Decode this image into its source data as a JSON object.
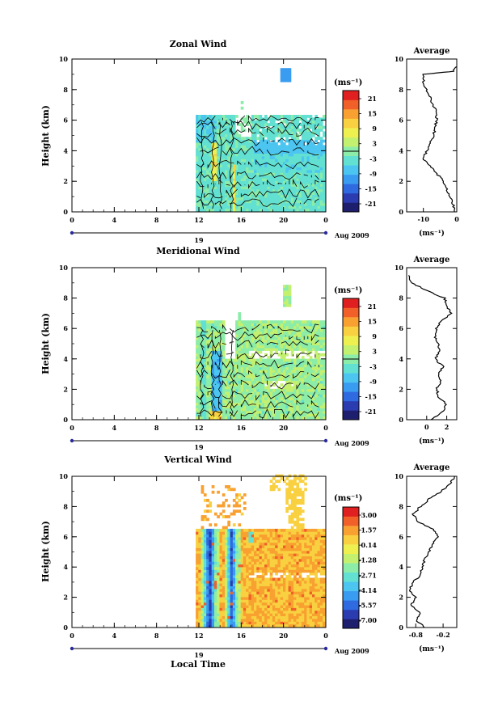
{
  "figure": {
    "date_label": "Aug 2009",
    "day_label": "19",
    "xlabel": "Local Time",
    "ylabel": "Height (km)",
    "unit_label": "(ms⁻¹)",
    "average_title": "Average",
    "xticks": [
      "0",
      "4",
      "8",
      "12",
      "16",
      "20",
      "0"
    ],
    "yticks": [
      "0",
      "2",
      "4",
      "6",
      "8",
      "10"
    ]
  },
  "colors": {
    "scale": [
      "#1e1e6e",
      "#2b3cb0",
      "#2f6ae0",
      "#3a9cf0",
      "#4cc6f0",
      "#62e0d2",
      "#8ceda8",
      "#c4f070",
      "#eef050",
      "#f8d040",
      "#f8a030",
      "#f06028",
      "#e02020"
    ]
  },
  "chart_data": [
    {
      "type": "heatmap",
      "title": "Zonal Wind",
      "x_range_hours": [
        0,
        24
      ],
      "ylim": [
        0,
        10
      ],
      "data_window_hours": [
        11.7,
        23.8
      ],
      "colorbar_ticks": [
        "21",
        "15",
        "9",
        "3",
        "-3",
        "-9",
        "-15",
        "-21"
      ],
      "colorbar_range": [
        -24,
        24
      ],
      "zero_contour": true,
      "average_profile": {
        "xticks": [
          "-10",
          "0"
        ],
        "xlim": [
          -15,
          0
        ],
        "height_km": [
          0,
          0.5,
          1,
          1.5,
          2,
          2.5,
          3,
          3.5,
          4,
          4.5,
          5,
          5.5,
          6,
          6.5,
          7,
          7.5,
          8,
          8.5,
          9,
          9.2,
          9.5
        ],
        "value": [
          -0.5,
          -1,
          -2,
          -3,
          -4,
          -6,
          -8,
          -10,
          -9,
          -8,
          -7,
          -6.5,
          -6,
          -6,
          -7,
          -8,
          -9,
          -10,
          -10,
          -1,
          0
        ]
      }
    },
    {
      "type": "heatmap",
      "title": "Meridional Wind",
      "x_range_hours": [
        0,
        24
      ],
      "ylim": [
        0,
        10
      ],
      "data_window_hours": [
        11.7,
        23.8
      ],
      "colorbar_ticks": [
        "21",
        "15",
        "9",
        "3",
        "-3",
        "-9",
        "-15",
        "-21"
      ],
      "colorbar_range": [
        -24,
        24
      ],
      "zero_contour": true,
      "average_profile": {
        "xticks": [
          "0",
          "2"
        ],
        "xlim": [
          -2,
          3
        ],
        "height_km": [
          0,
          0.5,
          1,
          1.5,
          2,
          2.5,
          3,
          3.5,
          4,
          4.5,
          5,
          5.5,
          6,
          6.5,
          7,
          7.5,
          8,
          8.5,
          9,
          9.5
        ],
        "value": [
          0.5,
          1.5,
          2,
          1.2,
          1,
          1.4,
          1.2,
          1.6,
          0.8,
          1.3,
          1.2,
          0.8,
          1.0,
          1.5,
          2.4,
          2.0,
          1.8,
          0,
          -1.5,
          -1.8
        ]
      }
    },
    {
      "type": "heatmap",
      "title": "Vertical Wind",
      "x_range_hours": [
        0,
        24
      ],
      "ylim": [
        0,
        10
      ],
      "data_window_hours": [
        11.7,
        23.8
      ],
      "colorbar_ticks": [
        "3.00",
        "1.57",
        "0.14",
        "-1.28",
        "-2.71",
        "-4.14",
        "-5.57",
        "-7.00"
      ],
      "colorbar_range": [
        -7.5,
        3.5
      ],
      "zero_contour": false,
      "average_profile": {
        "xticks": [
          "-0.8",
          "-0.2"
        ],
        "xlim": [
          -1.0,
          0.1
        ],
        "height_km": [
          0,
          0.5,
          1,
          1.5,
          2,
          2.5,
          3,
          3.5,
          4,
          4.5,
          5,
          5.5,
          6,
          6.5,
          7,
          7.5,
          8,
          8.5,
          9,
          9.5,
          10
        ],
        "value": [
          -0.6,
          -0.8,
          -0.7,
          -0.9,
          -0.8,
          -0.95,
          -0.85,
          -0.7,
          -0.65,
          -0.6,
          -0.5,
          -0.45,
          -0.3,
          -0.4,
          -0.75,
          -0.85,
          -0.7,
          -0.5,
          -0.25,
          -0.05,
          0.05
        ]
      }
    }
  ]
}
